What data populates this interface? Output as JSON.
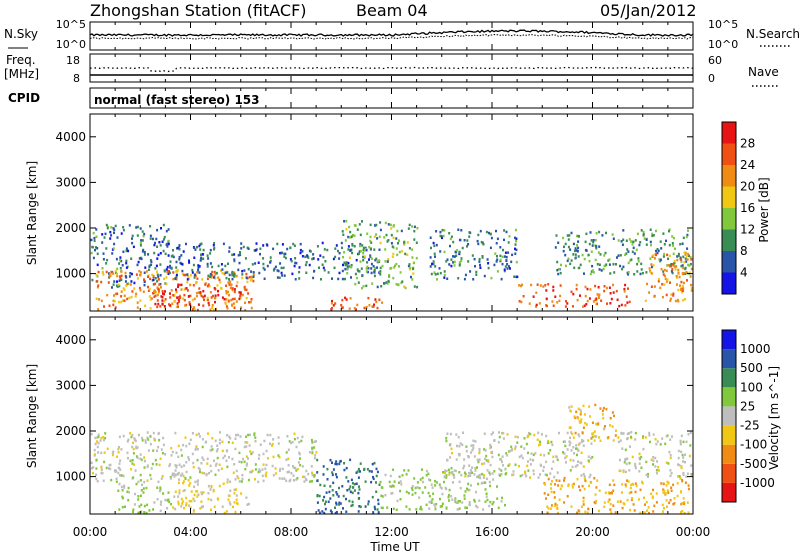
{
  "header": {
    "title": "Zhongshan Station (fitACF)",
    "beam": "Beam 04",
    "date": "05/Jan/2012"
  },
  "top_panel": {
    "left_label": "N.Sky",
    "left_ticks": [
      "10^5",
      "10^0"
    ],
    "right_label": "N.Search",
    "right_ticks": [
      "10^5",
      "10^0"
    ]
  },
  "freq_panel": {
    "left_label_1": "Freq.",
    "left_label_2": "[MHz]",
    "left_ticks": [
      "18",
      "8"
    ],
    "right_label": "Nave",
    "right_ticks": [
      "60",
      "0"
    ]
  },
  "cpid": {
    "label": "CPID",
    "text": "normal (fast stereo) 153"
  },
  "x_axis": {
    "label": "Time UT",
    "ticks": [
      "00:00",
      "04:00",
      "08:00",
      "12:00",
      "16:00",
      "20:00",
      "00:00"
    ]
  },
  "colors": {
    "power": [
      "#1414e6",
      "#2855a8",
      "#3a8c55",
      "#82c83c",
      "#f0c814",
      "#f08c14",
      "#f05014",
      "#e61414"
    ],
    "velocity": [
      "#e61414",
      "#f05014",
      "#f08c14",
      "#f0c814",
      "#bebebe",
      "#82c83c",
      "#3a8c55",
      "#2855a8",
      "#1414e6"
    ]
  },
  "chart_data": [
    {
      "type": "heatmap",
      "panel": "power",
      "ylabel": "Slant Range [km]",
      "ylim": [
        180,
        4500
      ],
      "yticks": [
        1000,
        2000,
        3000,
        4000
      ],
      "xlabel": "Time UT",
      "xlim_hours": [
        0,
        24
      ],
      "colorbar_label": "Power [dB]",
      "colorbar_ticks": [
        "4",
        "8",
        "12",
        "16",
        "20",
        "24",
        "28"
      ],
      "colorbar_range": [
        0,
        32
      ],
      "scatter_regions": [
        {
          "t": [
            0.0,
            3.2
          ],
          "r": [
            700,
            2100
          ],
          "value": 8
        },
        {
          "t": [
            0.2,
            6.5
          ],
          "r": [
            200,
            1100
          ],
          "value": 22
        },
        {
          "t": [
            2.5,
            6.3
          ],
          "r": [
            300,
            800
          ],
          "value": 28
        },
        {
          "t": [
            3.0,
            11.5
          ],
          "r": [
            900,
            1700
          ],
          "value": 7
        },
        {
          "t": [
            9.5,
            12.0
          ],
          "r": [
            200,
            500
          ],
          "value": 26
        },
        {
          "t": [
            10.0,
            13.0
          ],
          "r": [
            700,
            2200
          ],
          "value": 12
        },
        {
          "t": [
            13.5,
            17.0
          ],
          "r": [
            900,
            2000
          ],
          "value": 8
        },
        {
          "t": [
            17.0,
            21.5
          ],
          "r": [
            300,
            800
          ],
          "value": 26
        },
        {
          "t": [
            18.5,
            24.0
          ],
          "r": [
            1000,
            2000
          ],
          "value": 10
        },
        {
          "t": [
            22.0,
            24.0
          ],
          "r": [
            400,
            1500
          ],
          "value": 22
        }
      ]
    },
    {
      "type": "heatmap",
      "panel": "velocity",
      "ylabel": "Slant Range [km]",
      "ylim": [
        180,
        4500
      ],
      "yticks": [
        1000,
        2000,
        3000,
        4000
      ],
      "xlabel": "Time UT",
      "xlim_hours": [
        0,
        24
      ],
      "colorbar_label": "Velocity [m s^-1]",
      "colorbar_ticks": [
        "-1000",
        "-500",
        "-100",
        "-25",
        "25",
        "100",
        "500",
        "1000"
      ],
      "colorbar_range": [
        -1200,
        1200
      ],
      "scatter_regions": [
        {
          "t": [
            0.0,
            9.0
          ],
          "r": [
            900,
            2000
          ],
          "value": 0
        },
        {
          "t": [
            1.0,
            3.2
          ],
          "r": [
            200,
            900
          ],
          "value": 150
        },
        {
          "t": [
            3.2,
            6.3
          ],
          "r": [
            200,
            900
          ],
          "value": -150
        },
        {
          "t": [
            9.0,
            11.5
          ],
          "r": [
            200,
            1400
          ],
          "value": 700
        },
        {
          "t": [
            11.5,
            16.5
          ],
          "r": [
            300,
            1200
          ],
          "value": 200
        },
        {
          "t": [
            14.0,
            20.0
          ],
          "r": [
            1000,
            2000
          ],
          "value": 0
        },
        {
          "t": [
            18.0,
            24.0
          ],
          "r": [
            200,
            1000
          ],
          "value": -400
        },
        {
          "t": [
            19.0,
            21.0
          ],
          "r": [
            1800,
            2600
          ],
          "value": -300
        },
        {
          "t": [
            21.0,
            24.0
          ],
          "r": [
            1000,
            2000
          ],
          "value": 0
        }
      ]
    }
  ]
}
